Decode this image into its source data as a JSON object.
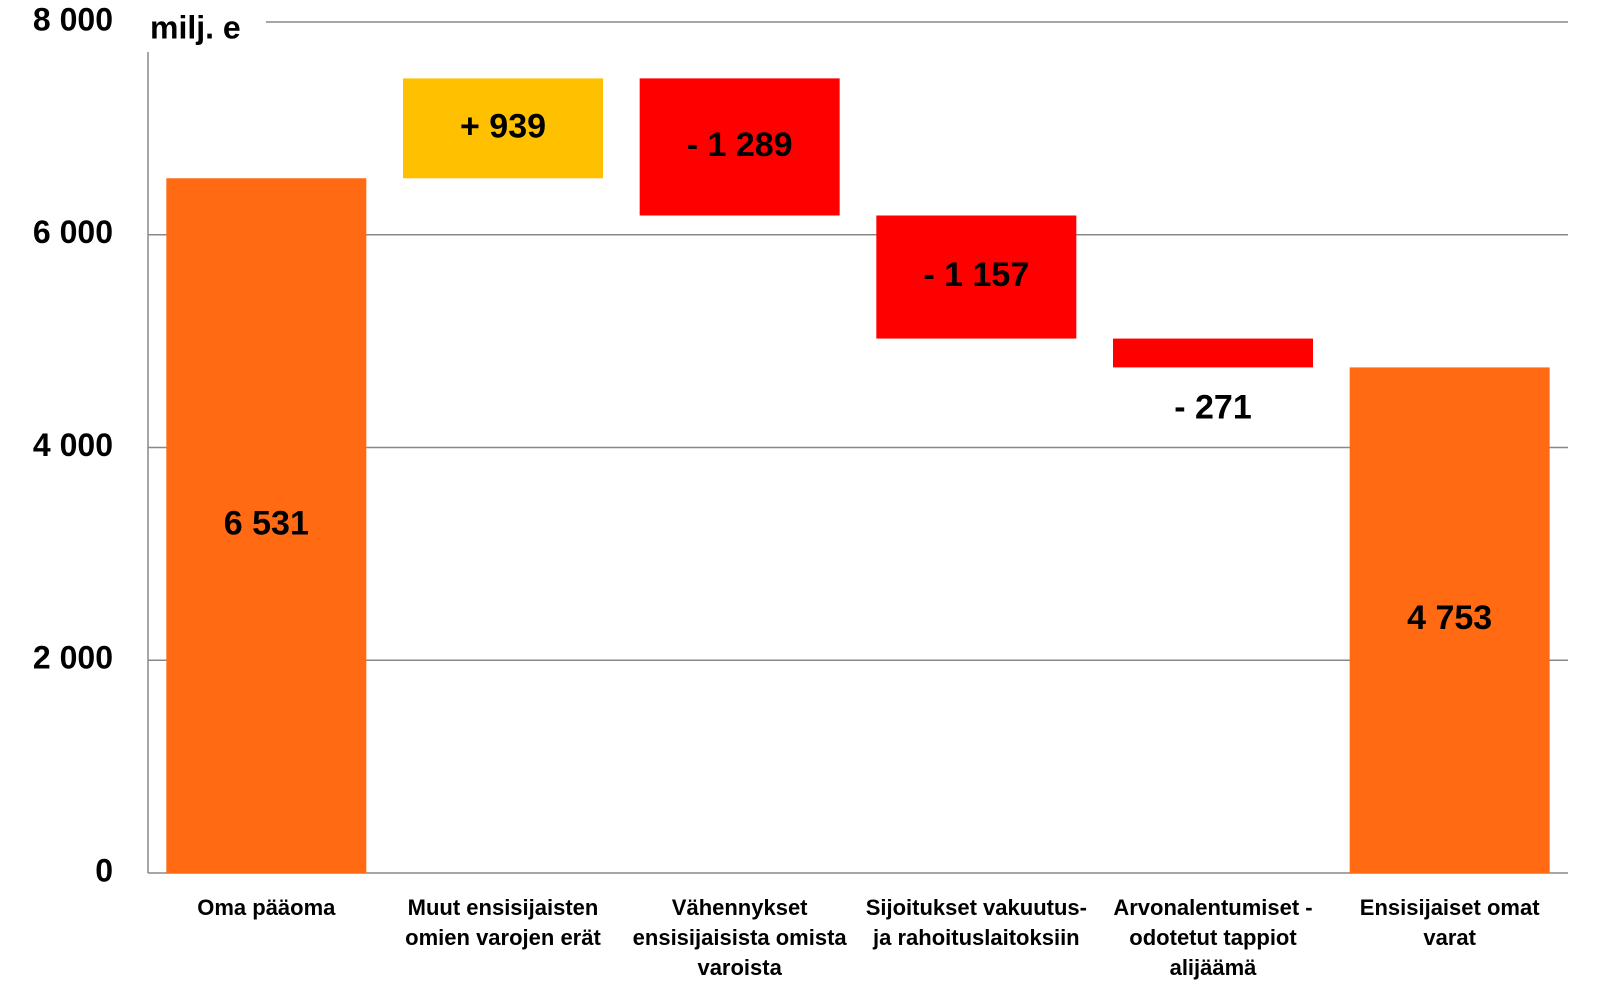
{
  "chart_data": {
    "type": "waterfall",
    "y_axis_label": "milj. e",
    "categories": [
      "Oma pääoma",
      "Muut ensisijaisten omien varojen erät",
      "Vähennykset ensisijaisista omista varoista",
      "Sijoitukset vakuutus- ja rahoituslaitoksiin",
      "Arvonalentumiset - odotetut tappiot alijäämä",
      "Ensisijaiset omat varat"
    ],
    "values": [
      6531,
      939,
      -1289,
      -1157,
      -271,
      4753
    ],
    "value_labels": [
      "6 531",
      "+ 939",
      "- 1 289",
      "- 1 157",
      "- 271",
      "4 753"
    ],
    "measures": [
      "absolute",
      "relative",
      "relative",
      "relative",
      "relative",
      "absolute"
    ],
    "colors": [
      "#ff6a13",
      "#ffc000",
      "#ff0000",
      "#ff0000",
      "#ff0000",
      "#ff6a13"
    ],
    "ylim": [
      0,
      8000
    ],
    "yticks": [
      0,
      {
        "value": 2000,
        "label": "2 000"
      },
      {
        "value": 4000,
        "label": "4 000"
      },
      {
        "value": 6000,
        "label": "6 000"
      },
      {
        "value": 8000,
        "label": "8 000"
      }
    ],
    "grid": true
  }
}
